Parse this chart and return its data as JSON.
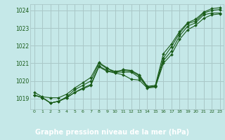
{
  "title": "Graphe pression niveau de la mer (hPa)",
  "bg_color": "#c5e8e8",
  "grid_color": "#aac8c8",
  "line_color": "#1a5c1a",
  "text_color": "#1a5c1a",
  "label_bg": "#2d6e2d",
  "label_fg": "#ffffff",
  "xlim": [
    -0.5,
    23.5
  ],
  "ylim": [
    1018.4,
    1024.35
  ],
  "yticks": [
    1019,
    1020,
    1021,
    1022,
    1023,
    1024
  ],
  "xticks": [
    0,
    1,
    2,
    3,
    4,
    5,
    6,
    7,
    8,
    9,
    10,
    11,
    12,
    13,
    14,
    15,
    16,
    17,
    18,
    19,
    20,
    21,
    22,
    23
  ],
  "series": [
    [
      1019.2,
      1019.05,
      1018.75,
      1018.85,
      1019.05,
      1019.35,
      1019.55,
      1019.75,
      1020.8,
      1020.55,
      1020.45,
      1020.35,
      1020.1,
      1020.05,
      1019.6,
      1019.65,
      1021.0,
      1021.5,
      1022.35,
      1022.9,
      1023.15,
      1023.55,
      1023.75,
      1023.8
    ],
    [
      1019.2,
      1019.05,
      1018.75,
      1018.85,
      1019.05,
      1019.35,
      1019.6,
      1019.8,
      1020.85,
      1020.6,
      1020.5,
      1020.5,
      1020.5,
      1020.2,
      1019.65,
      1019.7,
      1021.15,
      1021.7,
      1022.55,
      1023.1,
      1023.3,
      1023.75,
      1023.85,
      1023.85
    ],
    [
      1019.2,
      1019.05,
      1018.75,
      1018.85,
      1019.1,
      1019.5,
      1019.75,
      1020.0,
      1021.0,
      1020.7,
      1020.55,
      1020.6,
      1020.55,
      1020.3,
      1019.65,
      1019.7,
      1021.3,
      1021.95,
      1022.7,
      1023.25,
      1023.4,
      1023.85,
      1024.0,
      1024.05
    ],
    [
      1019.35,
      1019.1,
      1019.05,
      1019.05,
      1019.25,
      1019.6,
      1019.9,
      1020.2,
      1021.05,
      1020.75,
      1020.45,
      1020.65,
      1020.6,
      1020.35,
      1019.7,
      1019.75,
      1021.55,
      1022.1,
      1022.8,
      1023.3,
      1023.5,
      1023.9,
      1024.1,
      1024.15
    ]
  ]
}
